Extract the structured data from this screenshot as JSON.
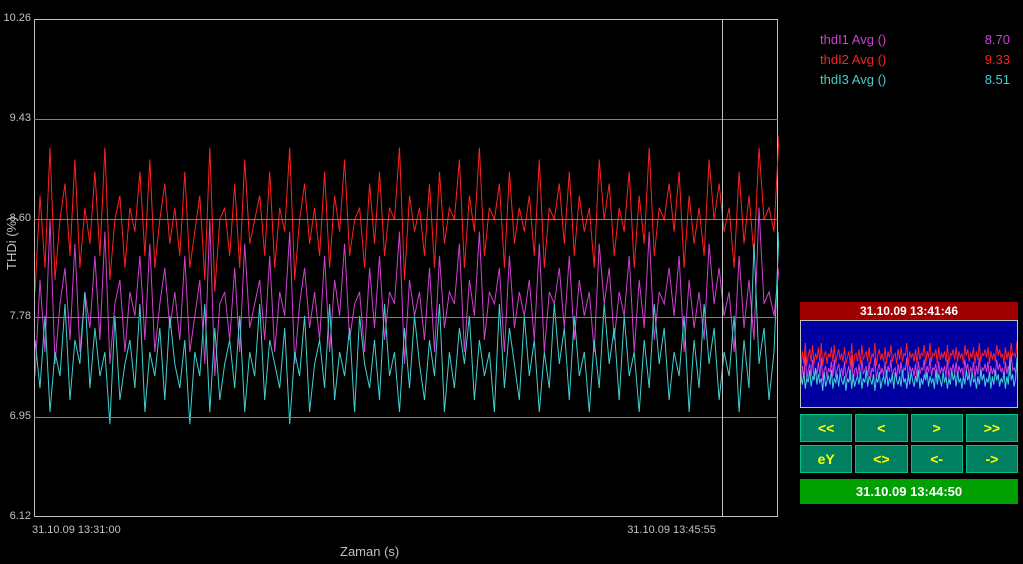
{
  "chart": {
    "type": "line",
    "ylabel": "THDi (%)",
    "xlabel": "Zaman (s)",
    "background": "#000000",
    "axis_color": "#c0c0c0",
    "grid_color": "#808080",
    "ylim": [
      6.12,
      10.26
    ],
    "yticks": [
      6.12,
      6.95,
      7.78,
      8.6,
      9.43,
      10.26
    ],
    "xticks": [
      {
        "pos": 0.0,
        "label": "31.10.09  13:31:00"
      },
      {
        "pos": 0.8,
        "label": "31.10.09  13:45:55"
      }
    ],
    "cursor_pos": 0.925,
    "series": [
      {
        "name": "thdI1 Avg ()",
        "color": "#d040d0",
        "value": "8.70",
        "data": [
          7.3,
          8.1,
          7.5,
          8.6,
          7.4,
          7.9,
          8.2,
          7.6,
          8.4,
          7.5,
          8.0,
          7.7,
          8.3,
          7.6,
          8.5,
          7.4,
          7.9,
          8.1,
          7.5,
          8.0,
          7.8,
          8.3,
          7.6,
          8.4,
          7.5,
          7.9,
          8.2,
          7.7,
          8.0,
          7.6,
          8.3,
          7.5,
          7.8,
          8.1,
          7.4,
          8.6,
          7.3,
          7.9,
          8.0,
          7.6,
          8.2,
          7.5,
          8.4,
          7.7,
          7.9,
          8.1,
          7.6,
          8.3,
          7.5,
          8.0,
          7.8,
          8.5,
          7.4,
          7.9,
          8.2,
          7.7,
          8.0,
          7.6,
          8.3,
          7.5,
          8.1,
          7.8,
          8.4,
          7.6,
          7.9,
          8.0,
          7.5,
          8.2,
          7.7,
          8.3,
          7.6,
          8.0,
          7.9,
          8.5,
          7.4,
          8.1,
          7.8,
          8.0,
          7.6,
          8.2,
          7.5,
          8.3,
          7.7,
          8.0,
          7.9,
          8.4,
          7.5,
          8.1,
          7.8,
          8.5,
          7.6,
          8.0,
          7.9,
          8.2,
          7.5,
          8.3,
          7.7,
          8.0,
          7.8,
          8.1,
          7.6,
          8.4,
          7.5,
          8.0,
          7.9,
          8.2,
          7.7,
          8.3,
          7.6,
          8.1,
          7.8,
          8.0,
          7.5,
          8.4,
          7.9,
          8.2,
          7.6,
          8.0,
          7.8,
          8.3,
          7.5,
          8.1,
          7.7,
          8.5,
          7.6,
          8.0,
          7.9,
          8.2,
          7.8,
          8.3,
          7.5,
          8.1,
          7.7,
          8.0,
          7.6,
          8.4,
          7.9,
          8.2,
          7.8,
          8.0,
          7.5,
          8.3,
          7.7,
          8.1,
          7.6,
          8.7,
          7.9,
          8.0,
          7.8,
          8.2
        ]
      },
      {
        "name": "thdI2 Avg ()",
        "color": "#ff2020",
        "value": "9.33",
        "data": [
          8.0,
          8.8,
          8.2,
          9.2,
          8.1,
          8.6,
          8.9,
          8.3,
          9.1,
          8.2,
          8.7,
          8.4,
          9.0,
          8.3,
          9.2,
          8.1,
          8.6,
          8.8,
          8.2,
          8.7,
          8.5,
          9.0,
          8.3,
          9.1,
          8.2,
          8.6,
          8.9,
          8.4,
          8.7,
          8.3,
          9.0,
          8.2,
          8.5,
          8.8,
          8.1,
          9.2,
          8.0,
          8.6,
          8.7,
          8.3,
          8.9,
          8.2,
          9.1,
          8.4,
          8.6,
          8.8,
          8.3,
          9.0,
          8.2,
          8.7,
          8.5,
          9.2,
          8.1,
          8.6,
          8.9,
          8.4,
          8.7,
          8.3,
          9.0,
          8.2,
          8.8,
          8.5,
          9.1,
          8.3,
          8.6,
          8.7,
          8.2,
          8.9,
          8.4,
          9.0,
          8.3,
          8.7,
          8.6,
          9.2,
          8.1,
          8.8,
          8.5,
          8.7,
          8.3,
          8.9,
          8.2,
          9.0,
          8.4,
          8.7,
          8.6,
          9.1,
          8.2,
          8.8,
          8.5,
          9.2,
          8.3,
          8.7,
          8.6,
          8.9,
          8.2,
          9.0,
          8.4,
          8.7,
          8.5,
          8.8,
          8.3,
          9.1,
          8.2,
          8.7,
          8.6,
          8.9,
          8.4,
          9.0,
          8.3,
          8.8,
          8.5,
          8.7,
          8.2,
          9.1,
          8.6,
          8.9,
          8.3,
          8.7,
          8.5,
          9.0,
          8.2,
          8.8,
          8.4,
          9.2,
          8.3,
          8.7,
          8.6,
          8.9,
          8.5,
          9.0,
          8.2,
          8.8,
          8.4,
          8.7,
          8.3,
          9.1,
          8.6,
          8.9,
          8.5,
          8.7,
          8.2,
          9.0,
          8.4,
          8.8,
          8.3,
          9.2,
          8.6,
          8.7,
          8.5,
          9.3
        ]
      },
      {
        "name": "thdI3 Avg ()",
        "color": "#40d0d0",
        "value": "8.51",
        "data": [
          7.6,
          7.2,
          7.8,
          7.0,
          7.5,
          7.3,
          7.9,
          7.1,
          7.6,
          7.4,
          8.0,
          7.2,
          7.7,
          7.3,
          7.5,
          6.9,
          7.8,
          7.1,
          7.4,
          7.6,
          7.2,
          7.9,
          7.0,
          7.5,
          7.3,
          7.7,
          7.1,
          7.8,
          7.4,
          7.2,
          7.6,
          6.9,
          7.5,
          7.3,
          7.9,
          7.0,
          7.7,
          7.1,
          7.4,
          7.6,
          7.2,
          7.8,
          7.0,
          7.5,
          7.3,
          7.9,
          7.1,
          7.6,
          7.4,
          7.2,
          7.7,
          6.9,
          7.5,
          7.3,
          7.8,
          7.0,
          7.4,
          7.6,
          7.2,
          7.9,
          7.1,
          7.5,
          7.3,
          7.7,
          7.0,
          7.8,
          7.4,
          7.2,
          7.6,
          7.1,
          7.9,
          7.3,
          7.5,
          7.0,
          7.7,
          7.2,
          7.8,
          7.4,
          7.1,
          7.6,
          7.3,
          7.9,
          7.0,
          7.5,
          7.2,
          7.7,
          7.4,
          7.8,
          7.1,
          7.6,
          7.3,
          7.5,
          7.0,
          7.9,
          7.2,
          7.7,
          7.4,
          7.1,
          7.8,
          7.3,
          7.6,
          7.0,
          7.5,
          7.2,
          7.9,
          7.4,
          7.7,
          7.1,
          7.8,
          7.3,
          7.5,
          7.0,
          7.6,
          7.2,
          7.9,
          7.4,
          7.7,
          7.1,
          7.8,
          7.3,
          7.5,
          7.0,
          7.6,
          7.2,
          7.9,
          7.4,
          7.7,
          7.1,
          7.5,
          7.3,
          7.8,
          7.0,
          7.6,
          7.2,
          7.9,
          7.4,
          7.7,
          7.1,
          7.5,
          7.3,
          7.8,
          7.0,
          7.6,
          7.2,
          8.4,
          7.4,
          7.7,
          7.1,
          7.5,
          8.5
        ]
      }
    ]
  },
  "mini": {
    "title": "31.10.09  13:41:46",
    "background": "#0000a0"
  },
  "nav": {
    "rewind": "<<",
    "prev": "<",
    "next": ">",
    "forward": ">>",
    "ey": "eY",
    "fit": "<>",
    "back": "<-",
    "fwd": "->"
  },
  "status": "31.10.09  13:44:50",
  "colors": {
    "btn_bg": "#008060",
    "btn_fg": "#ffff00",
    "status_bg": "#00a000",
    "mini_title_bg": "#a00000"
  }
}
